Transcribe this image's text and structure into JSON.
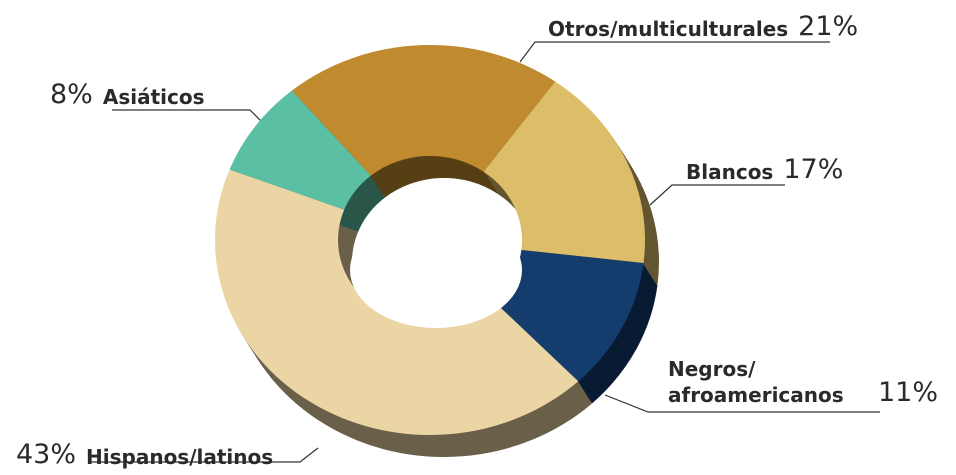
{
  "chart_data": {
    "type": "donut",
    "categories": [
      "Otros/multiculturales",
      "Blancos",
      "Negros/ afroamericanos",
      "Hispanos/latinos",
      "Asiáticos"
    ],
    "values": [
      21,
      17,
      11,
      43,
      8
    ],
    "value_labels": [
      "21%",
      "17%",
      "11%",
      "43%",
      "8%"
    ],
    "colors": [
      "#c08a2e",
      "#dcbd6a",
      "#143d6e",
      "#ebd5a5",
      "#5bbfa3"
    ]
  }
}
